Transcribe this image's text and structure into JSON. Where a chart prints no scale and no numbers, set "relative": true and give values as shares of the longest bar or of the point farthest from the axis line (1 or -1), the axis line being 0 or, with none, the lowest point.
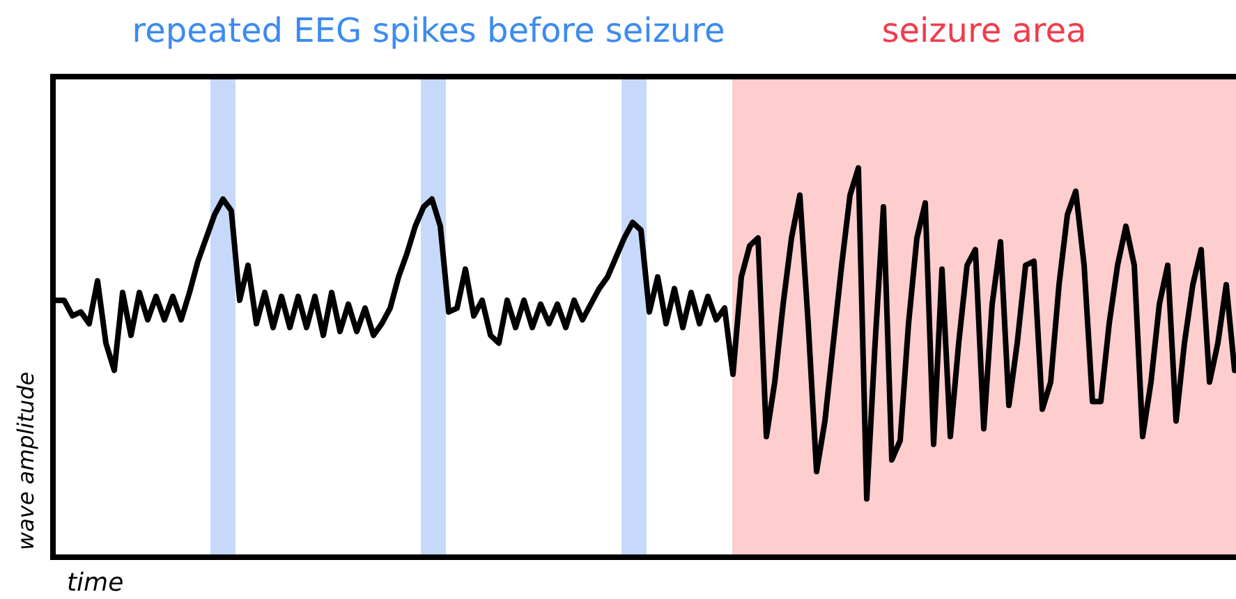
{
  "chart_data": {
    "type": "line",
    "relative": true,
    "xlabel": "time",
    "ylabel": "wave amplitude",
    "annotations": [
      "repeated EEG spikes before seizure",
      "seizure area"
    ],
    "categories": [
      null,
      null,
      null,
      null,
      null,
      null,
      null,
      null,
      null,
      null,
      null,
      null,
      null,
      null,
      null,
      null,
      null,
      null,
      null,
      null,
      null,
      null,
      null,
      null,
      null,
      null,
      null,
      null,
      null,
      null,
      null,
      null,
      null,
      null,
      null,
      null,
      null,
      null,
      null,
      null,
      null,
      null,
      null,
      null,
      null,
      null,
      null,
      null,
      null,
      null,
      null,
      null,
      null,
      null,
      null,
      null,
      null,
      null,
      null,
      null,
      null,
      null,
      null,
      null,
      null,
      null,
      null,
      null,
      null,
      null,
      null,
      null,
      null,
      null,
      null,
      null,
      null,
      null,
      null,
      null,
      null,
      null,
      null,
      null,
      null,
      null,
      null,
      null,
      null,
      null,
      null,
      null,
      null,
      null,
      null,
      null,
      null,
      null,
      null,
      null,
      null,
      null,
      null,
      null,
      null,
      null,
      null,
      null,
      null,
      null,
      null,
      null,
      null,
      null,
      null,
      null,
      null,
      null,
      null,
      null,
      null,
      null,
      null,
      null,
      null,
      null,
      null,
      null,
      null,
      null,
      null,
      null,
      null,
      null,
      null,
      null,
      null,
      null,
      null,
      null,
      null,
      null
    ],
    "series": [
      {
        "color": "#000000",
        "values": [
          0.66,
          0.66,
          0.62,
          0.63,
          0.6,
          0.71,
          0.55,
          0.48,
          0.68,
          0.57,
          0.68,
          0.61,
          0.67,
          0.61,
          0.67,
          0.61,
          0.68,
          0.76,
          0.82,
          0.88,
          0.92,
          0.89,
          0.66,
          0.75,
          0.6,
          0.68,
          0.59,
          0.67,
          0.59,
          0.67,
          0.59,
          0.67,
          0.57,
          0.68,
          0.58,
          0.65,
          0.58,
          0.64,
          0.57,
          0.6,
          0.64,
          0.72,
          0.78,
          0.85,
          0.9,
          0.92,
          0.85,
          0.63,
          0.64,
          0.74,
          0.62,
          0.66,
          0.57,
          0.55,
          0.66,
          0.59,
          0.66,
          0.59,
          0.65,
          0.6,
          0.65,
          0.59,
          0.66,
          0.61,
          0.65,
          0.69,
          0.72,
          0.77,
          0.82,
          0.86,
          0.84,
          0.63,
          0.72,
          0.6,
          0.69,
          0.59,
          0.68,
          0.6,
          0.67,
          0.61,
          0.64,
          0.47,
          0.72,
          0.8,
          0.82,
          0.31,
          0.45,
          0.65,
          0.82,
          0.93,
          0.6,
          0.22,
          0.35,
          0.55,
          0.75,
          0.93,
          1.0,
          0.15,
          0.55,
          0.9,
          0.25,
          0.3,
          0.6,
          0.82,
          0.91,
          0.29,
          0.74,
          0.31,
          0.55,
          0.75,
          0.79,
          0.33,
          0.65,
          0.81,
          0.39,
          0.55,
          0.75,
          0.76,
          0.38,
          0.45,
          0.7,
          0.88,
          0.94,
          0.75,
          0.4,
          0.4,
          0.6,
          0.75,
          0.85,
          0.75,
          0.31,
          0.45,
          0.65,
          0.75,
          0.35,
          0.55,
          0.7,
          0.79,
          0.45,
          0.55,
          0.7,
          0.48
        ]
      }
    ]
  }
}
